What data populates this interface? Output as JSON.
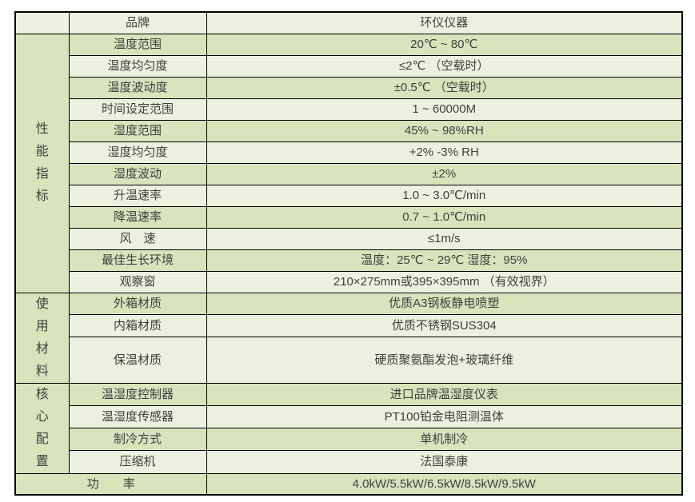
{
  "colors": {
    "row_green": "#d7e4bc",
    "row_light": "#ebf1de",
    "border": "#000000",
    "text": "#3f3f3f",
    "page_background": "#ffffff"
  },
  "header": {
    "corner": "",
    "brand_label": "品牌",
    "brand_value": "环仪仪器"
  },
  "sections": [
    {
      "group": "性能指标",
      "group_chars": [
        "性",
        "能",
        "指",
        "标"
      ],
      "rows": [
        {
          "label": "温度范围",
          "value": "20℃ ~ 80℃"
        },
        {
          "label": "温度均匀度",
          "value": "≤2℃ （空载时）"
        },
        {
          "label": "温度波动度",
          "value": "±0.5℃ （空载时）"
        },
        {
          "label": "时间设定范围",
          "value": "1 ~ 60000M"
        },
        {
          "label": "湿度范围",
          "value": "45% ~ 98%RH"
        },
        {
          "label": "湿度均匀度",
          "value": "+2% -3% RH"
        },
        {
          "label": "湿度波动",
          "value": "±2%"
        },
        {
          "label": "升温速率",
          "value": "1.0 ~ 3.0℃/min"
        },
        {
          "label": "降温速率",
          "value": "0.7 ~ 1.0℃/min"
        },
        {
          "label": "风　速",
          "value": "≤1m/s"
        },
        {
          "label": "最佳生长环境",
          "value": "温度：25℃ ~ 29℃ 湿度：95%"
        },
        {
          "label": "观察窗",
          "value": "210×275mm或395×395mm （有效视界）"
        }
      ]
    },
    {
      "group": "使用材料",
      "group_chars": [
        "使",
        "用",
        "材",
        "料"
      ],
      "rows": [
        {
          "label": "外箱材质",
          "value": "优质A3钢板静电喷塑"
        },
        {
          "label": "内箱材质",
          "value": "优质不锈钢SUS304"
        },
        {
          "label": "保温材质",
          "value": "硬质聚氨酯发泡+玻璃纤维"
        }
      ]
    },
    {
      "group": "核心配置",
      "group_chars": [
        "核",
        "心",
        "配",
        "置"
      ],
      "rows": [
        {
          "label": "温湿度控制器",
          "value": "进口品牌温湿度仪表"
        },
        {
          "label": "温湿度传感器",
          "value": "PT100铂金电阻测温体"
        },
        {
          "label": "制冷方式",
          "value": "单机制冷"
        },
        {
          "label": "压缩机",
          "value": "法国泰康"
        }
      ]
    }
  ],
  "footer": {
    "label": "功　　率",
    "value": "4.0kW/5.5kW/6.5kW/8.5kW/9.5kW"
  }
}
